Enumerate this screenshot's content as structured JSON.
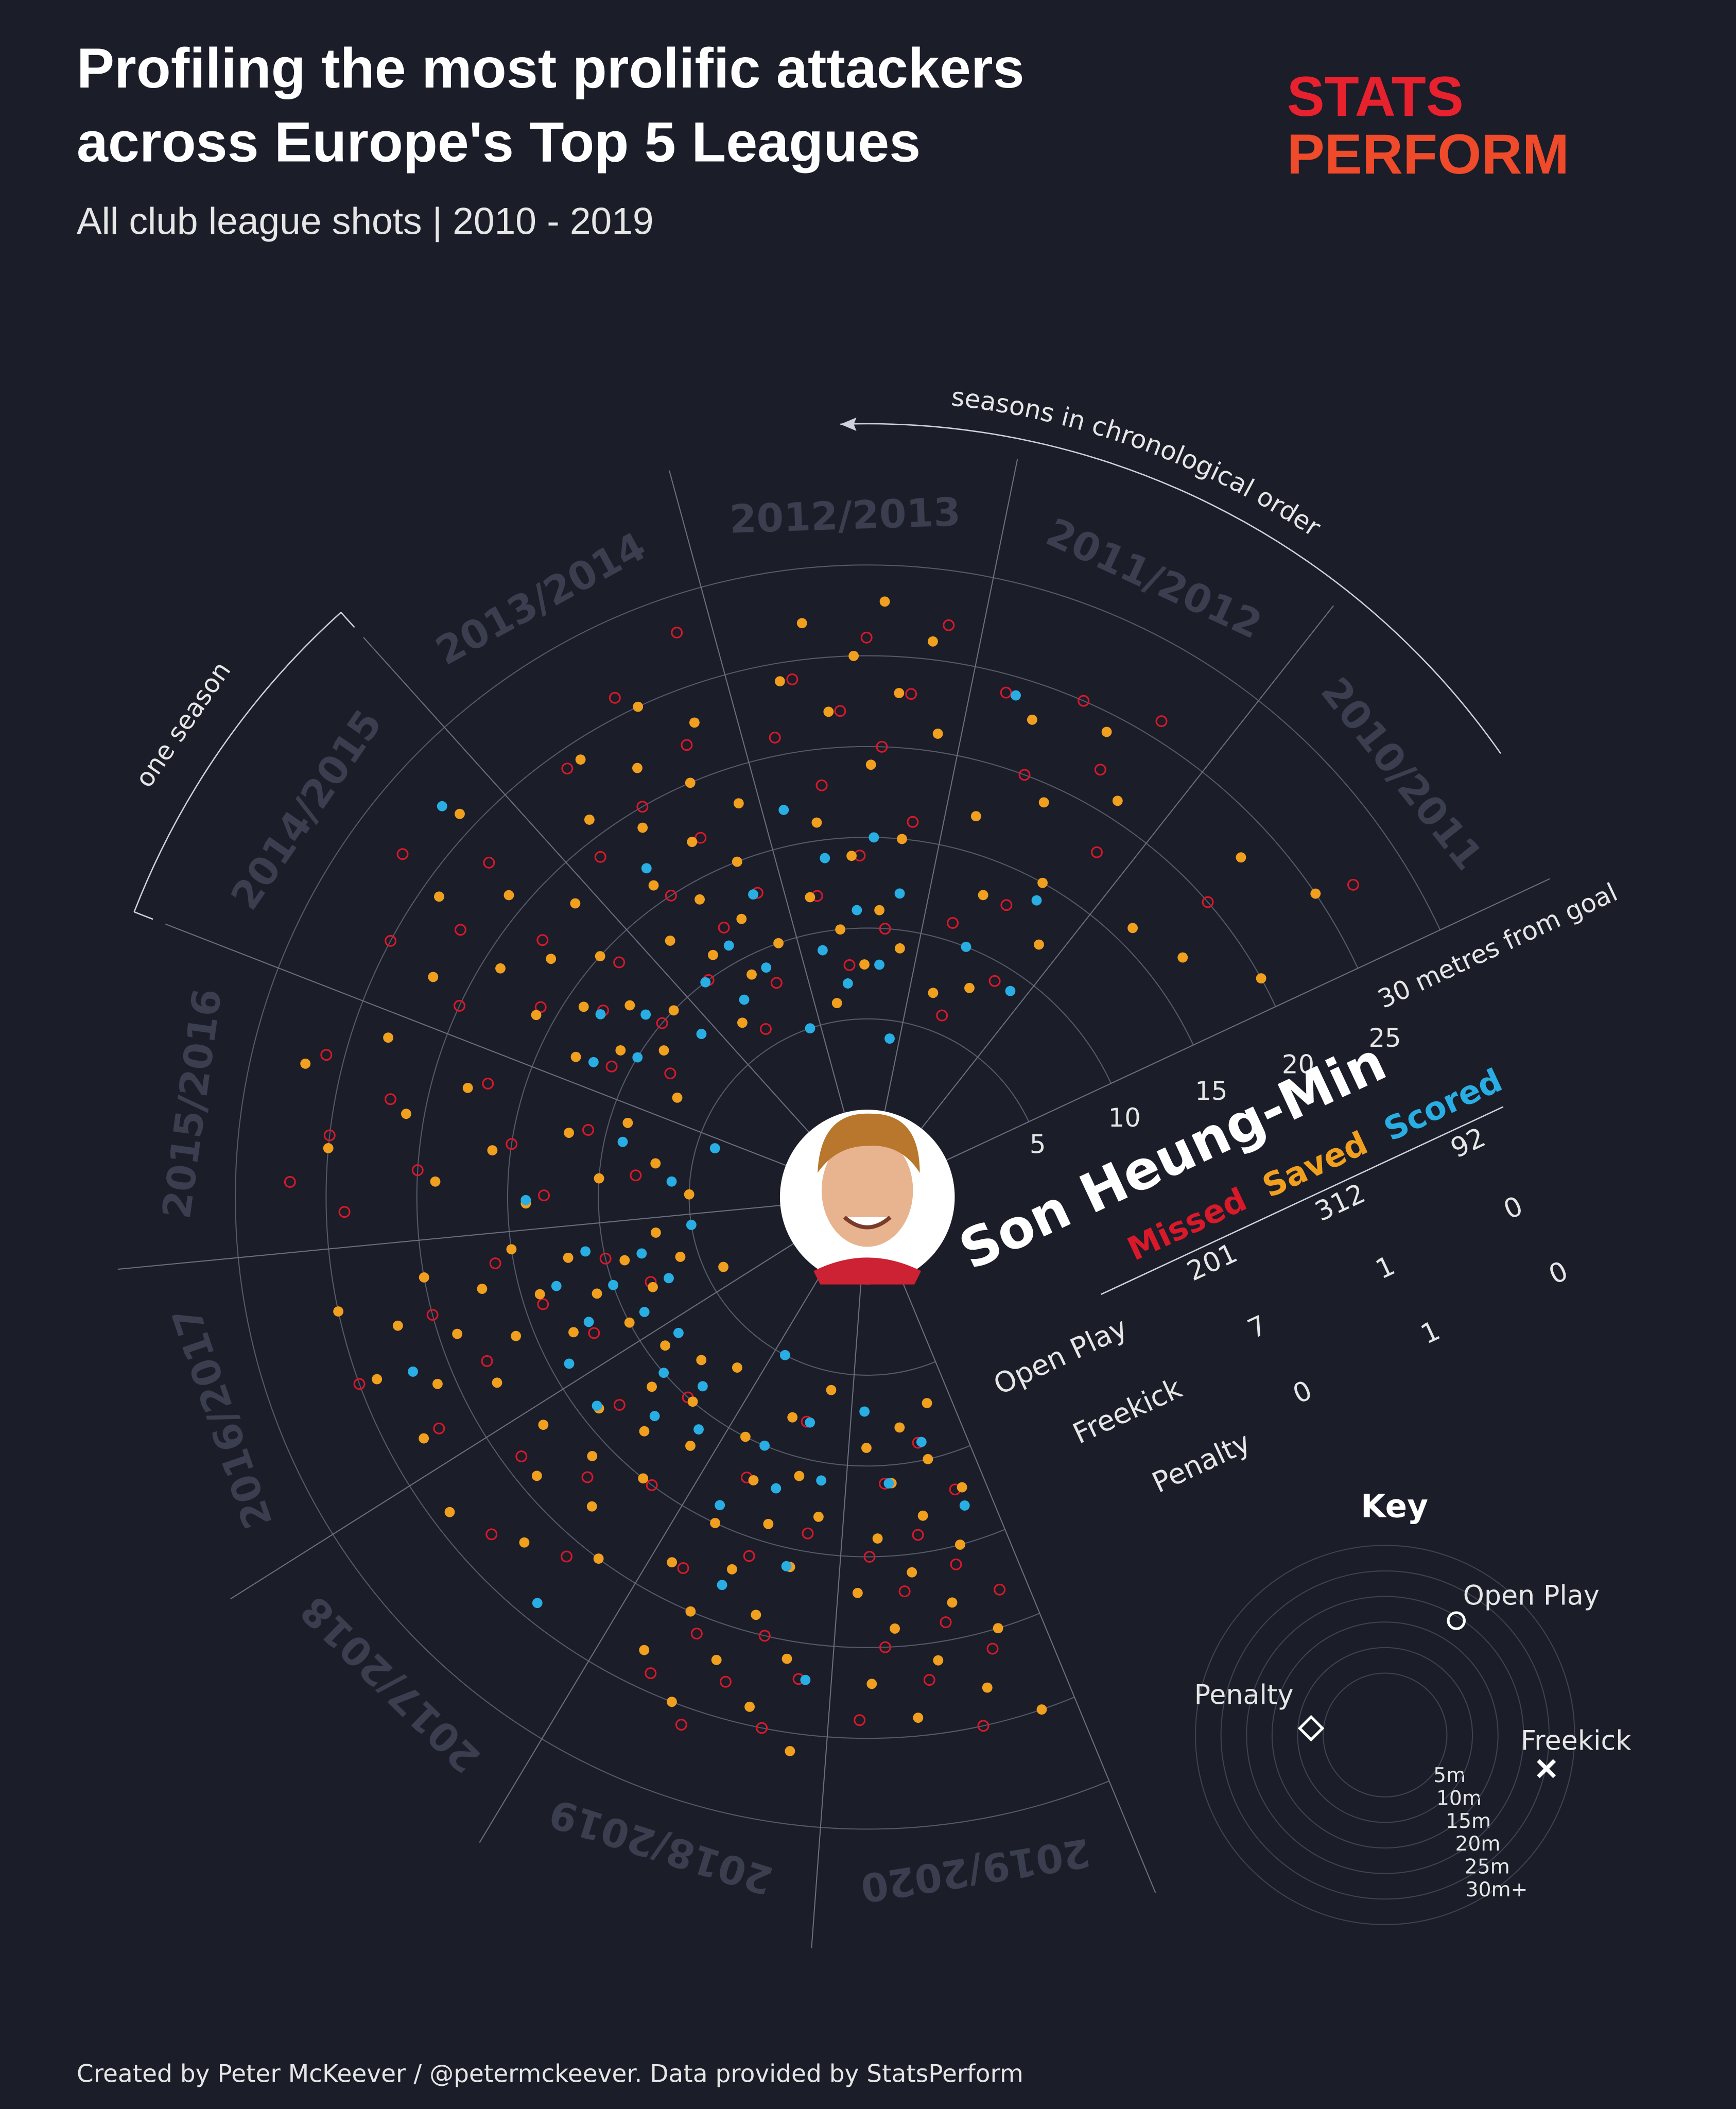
{
  "title_lines": [
    "Profiling the most prolific attackers",
    "across Europe's Top 5 Leagues"
  ],
  "subtitle": "All club league shots | 2010 - 2019",
  "logo": [
    "STATS",
    "PERFORM"
  ],
  "chart_data": {
    "type": "radial-scatter",
    "player": "Son Heung-Min",
    "categories": [
      "2010/2011",
      "2011/2012",
      "2012/2013",
      "2013/2014",
      "2014/2015",
      "2015/2016",
      "2016/2017",
      "2017/2018",
      "2018/2019",
      "2019/2020"
    ],
    "series": [
      {
        "name": "Missed",
        "color": "#d7192a",
        "values": [
          [
            20,
            27
          ],
          [
            6,
            9,
            11,
            13,
            18,
            20,
            22,
            24,
            25,
            26
          ],
          [
            8,
            10,
            12,
            14,
            16,
            18,
            20,
            21,
            22,
            23,
            24,
            26,
            27
          ],
          [
            6,
            8,
            10,
            12,
            13,
            15,
            17,
            19,
            20,
            22,
            24,
            26,
            28
          ],
          [
            8,
            10,
            11,
            13,
            14,
            16,
            18,
            20,
            22,
            23,
            25,
            27
          ],
          [
            8,
            11,
            13,
            15,
            17,
            20,
            22,
            24,
            25,
            26,
            27
          ],
          [
            8,
            10,
            12,
            14,
            16,
            18,
            20,
            22,
            25
          ],
          [
            10,
            13,
            15,
            17,
            19,
            21,
            23
          ],
          [
            8,
            12,
            14,
            16,
            18,
            20,
            21,
            22,
            23,
            24,
            25,
            26
          ],
          [
            9,
            11,
            12,
            14,
            15,
            16,
            17,
            18,
            19,
            20,
            21,
            22,
            24,
            25
          ]
        ]
      },
      {
        "name": "Saved",
        "color": "#f0a01e",
        "values": [
          [
            16,
            17,
            20,
            23,
            25
          ],
          [
            7,
            8,
            12,
            13,
            15,
            17,
            19,
            21,
            23,
            24
          ],
          [
            6,
            8,
            9,
            10,
            11,
            12,
            14,
            15,
            16,
            19,
            21,
            22,
            23,
            24,
            25,
            26,
            27,
            28
          ],
          [
            7,
            9,
            10,
            11,
            12,
            13,
            14,
            15,
            16,
            17,
            18,
            19,
            20,
            21,
            22,
            23,
            24,
            25
          ],
          [
            7,
            9,
            10,
            11,
            12,
            13,
            14,
            15,
            16,
            17,
            18,
            19,
            21,
            22,
            24,
            26
          ],
          [
            5,
            7,
            9,
            10,
            12,
            14,
            16,
            18,
            19,
            21,
            23,
            25,
            27
          ],
          [
            4,
            6,
            7,
            8,
            9,
            10,
            11,
            12,
            13,
            14,
            15,
            16,
            17,
            18,
            19,
            20,
            21,
            22,
            23,
            24,
            25
          ],
          [
            7,
            8,
            9,
            10,
            11,
            12,
            13,
            14,
            15,
            16,
            17,
            18,
            19,
            20,
            22,
            24
          ],
          [
            6,
            8,
            10,
            11,
            12,
            13,
            14,
            15,
            16,
            17,
            18,
            19,
            20,
            21,
            22,
            23,
            24,
            25,
            26
          ],
          [
            7,
            8,
            9,
            10,
            11,
            12,
            13,
            14,
            15,
            16,
            17,
            18,
            19,
            20,
            21,
            22,
            23,
            24,
            25
          ]
        ]
      },
      {
        "name": "Scored",
        "color": "#29aee3",
        "values": [
          [],
          [
            9,
            10,
            14,
            24
          ],
          [
            4,
            7,
            8,
            9,
            11,
            12,
            14,
            15,
            17
          ],
          [
            5,
            8,
            9,
            10,
            11,
            13,
            17
          ],
          [
            8,
            10,
            11,
            12,
            13,
            27
          ],
          [
            4,
            6,
            9,
            14
          ],
          [
            5,
            7,
            8,
            9,
            10,
            11,
            12,
            13,
            14,
            22
          ],
          [
            8,
            9,
            10,
            11,
            12,
            14,
            24
          ],
          [
            5,
            8,
            10,
            11,
            12,
            14,
            16,
            18,
            22
          ],
          [
            7,
            9,
            11,
            13
          ]
        ]
      }
    ],
    "rlim": [
      0,
      30
    ],
    "rticks": [
      5,
      10,
      15,
      20,
      25,
      {
        "value": 30,
        "label": "30 metres from goal"
      }
    ],
    "annotations": [
      "seasons in chronological order",
      "one season"
    ]
  },
  "table": {
    "columns": [
      "Missed",
      "Saved",
      "Scored"
    ],
    "rows": [
      {
        "label": "Open Play",
        "values": [
          201,
          312,
          92
        ]
      },
      {
        "label": "Freekick",
        "values": [
          7,
          1,
          0
        ]
      },
      {
        "label": "Penalty",
        "values": [
          0,
          1,
          0
        ]
      }
    ]
  },
  "key": {
    "title": "Key",
    "labels": [
      "Open Play",
      "Penalty",
      "Freekick"
    ],
    "rings": [
      "5m",
      "10m",
      "15m",
      "20m",
      "25m",
      "30m+"
    ]
  },
  "footer": "Created by Peter McKeever / @petermckeever. Data provided by StatsPerform"
}
